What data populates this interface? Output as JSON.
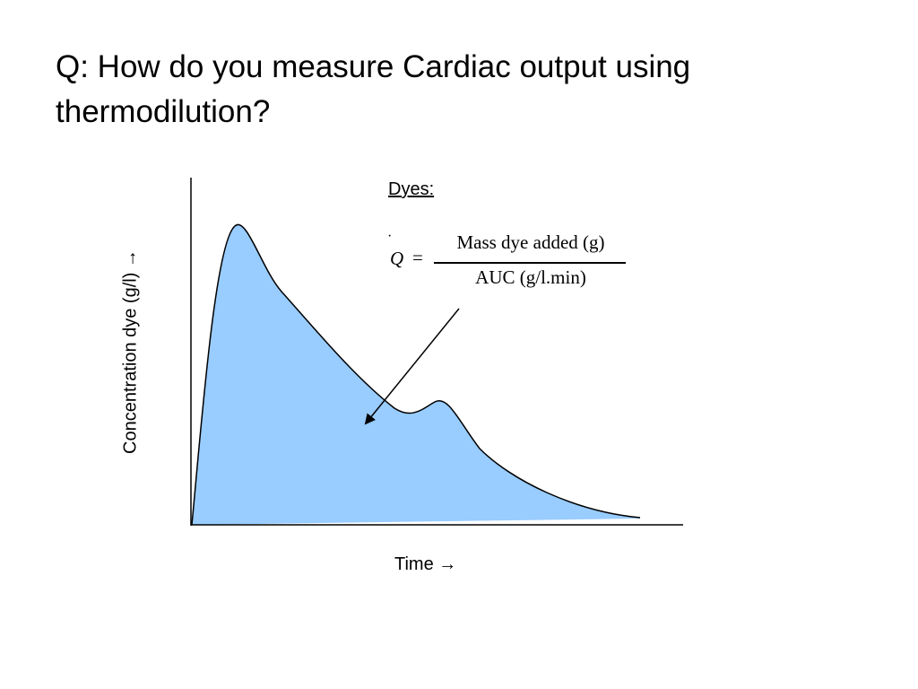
{
  "slide": {
    "title_lines": [
      "Q: How do you measure Cardiac output using",
      "thermodilution?"
    ]
  },
  "annotation": {
    "heading": "Dyes:",
    "formula": {
      "symbol": "Q",
      "dot": "·",
      "equals": "=",
      "numerator": "Mass dye added (g)",
      "denominator": "AUC (g/l.min)"
    }
  },
  "chart_data": {
    "type": "area",
    "title": "",
    "xlabel": "Time →",
    "ylabel": "Concentration dye (g/l) →",
    "description_fill_color": "#99ccff",
    "curve_color": "#000000",
    "features": [
      "primary peak",
      "recirculation peak",
      "decay tail"
    ]
  },
  "colors": {
    "area_fill": "#99ccff",
    "axis": "#000000",
    "text": "#000000"
  }
}
